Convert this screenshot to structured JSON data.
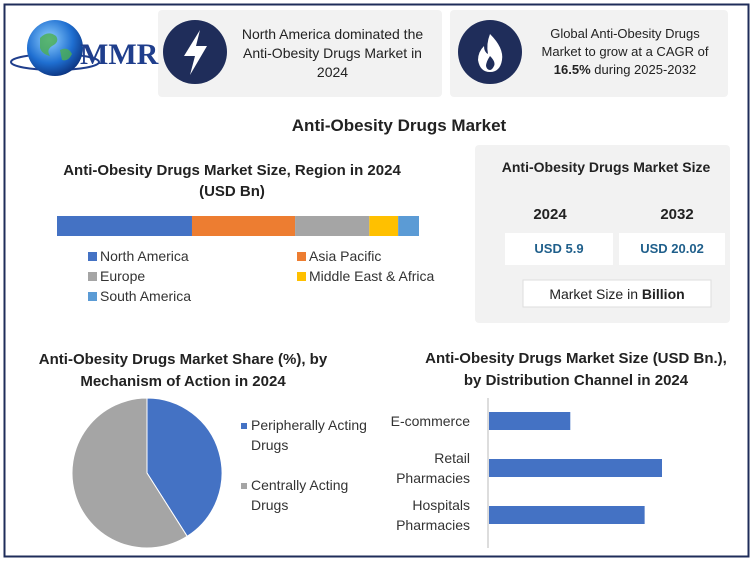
{
  "header": {
    "logo": "MMR",
    "cards": [
      {
        "text": "North America dominated the Anti-Obesity Drugs Market in 2024"
      },
      {
        "parts": [
          "Global Anti-Obesity Drugs Market to grow at a CAGR of",
          "16.5%",
          "during 2025-2032"
        ]
      }
    ]
  },
  "title": "Anti-Obesity Drugs Market",
  "market_size": {
    "title": "Anti-Obesity Drugs Market Size",
    "columns": [
      {
        "year": "2024",
        "value": "USD 5.9"
      },
      {
        "year": "2032",
        "value": "USD 20.02"
      }
    ],
    "footer": [
      "Market Size in",
      "Billion"
    ]
  },
  "chart_data": [
    {
      "type": "stacked_bar",
      "title": "Anti-Obesity Drugs Market Size, Region in 2024 (USD Bn)",
      "series": [
        {
          "name": "North America",
          "color": "#4472c4",
          "values": [
            2.2
          ]
        },
        {
          "name": "Asia Pacific",
          "color": "#ed7d31",
          "values": [
            1.68
          ]
        },
        {
          "name": "Europe",
          "color": "#a5a5a5",
          "values": [
            1.21
          ]
        },
        {
          "name": "Middle East & Africa",
          "color": "#ffc000",
          "values": [
            0.47
          ]
        },
        {
          "name": "South America",
          "color": "#5b9bd5",
          "values": [
            0.34
          ]
        }
      ]
    },
    {
      "type": "pie",
      "title": "Anti-Obesity Drugs Market Share (%), by Mechanism of Action in 2024",
      "categories": [
        "Peripherally Acting Drugs",
        "Centrally Acting Drugs"
      ],
      "values": [
        41,
        59
      ],
      "colors": [
        "#4472c4",
        "#a5a5a5"
      ]
    },
    {
      "type": "hbar",
      "title": "Anti-Obesity Drugs Market Size (USD Bn.), by Distribution Channel in 2024",
      "categories": [
        "E-commerce",
        "Retail Pharmacies",
        "Hospitals Pharmacies"
      ],
      "values": [
        1.17,
        2.49,
        2.24
      ],
      "color": "#4472c4"
    }
  ]
}
